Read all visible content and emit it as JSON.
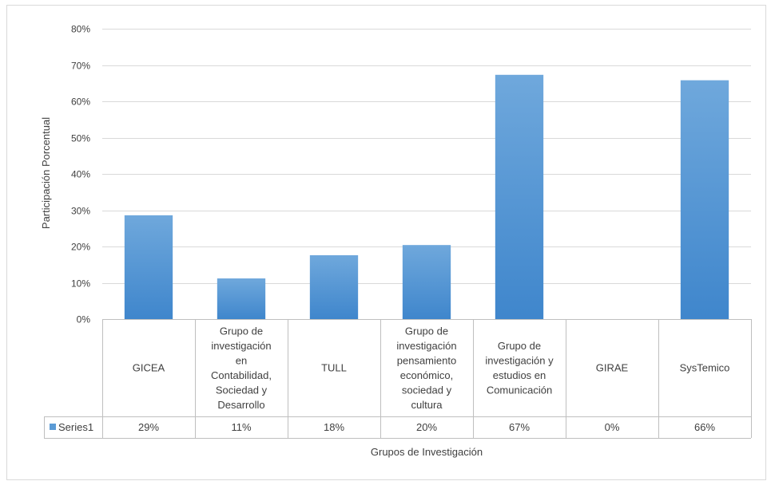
{
  "chart_data": {
    "type": "bar",
    "xlabel": "Grupos de Investigación",
    "ylabel": "Participación Porcentual",
    "ylim": [
      0,
      80
    ],
    "y_ticks": [
      "0%",
      "10%",
      "20%",
      "30%",
      "40%",
      "50%",
      "60%",
      "70%",
      "80%"
    ],
    "grid": true,
    "data_table": true,
    "categories": [
      [
        "GICEA"
      ],
      [
        "Grupo de",
        "investigación",
        "en",
        "Contabilidad,",
        "Sociedad y",
        "Desarrollo"
      ],
      [
        "TULL"
      ],
      [
        "Grupo de",
        "investigación",
        "pensamiento",
        "económico,",
        "sociedad y",
        "cultura"
      ],
      [
        "Grupo de",
        "investigación y",
        "estudios en",
        "Comunicación"
      ],
      [
        "GIRAE"
      ],
      [
        "SysTemico"
      ]
    ],
    "series": [
      {
        "name": "Series1",
        "values": [
          28.6,
          11.2,
          17.6,
          20.4,
          67.3,
          0,
          65.8
        ],
        "labels": [
          "29%",
          "11%",
          "18%",
          "20%",
          "67%",
          "0%",
          "66%"
        ],
        "color": "#5b9bd5"
      }
    ]
  }
}
